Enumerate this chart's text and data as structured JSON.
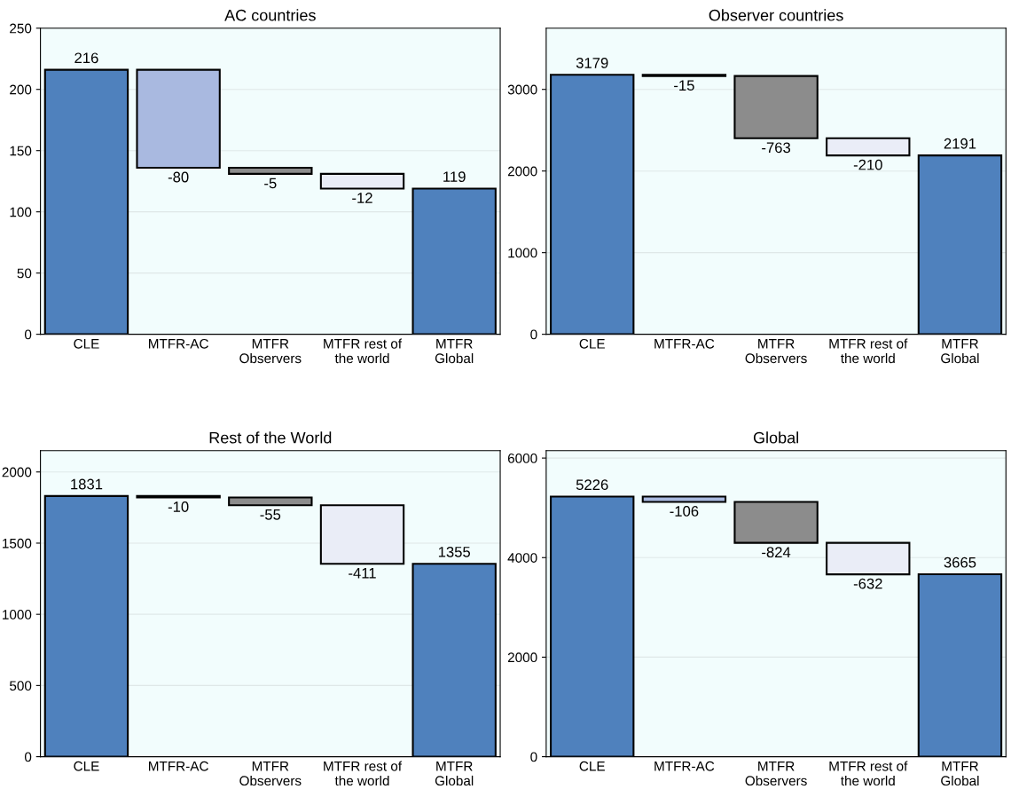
{
  "chart_data": [
    {
      "type": "bar",
      "title": "AC countries",
      "categories": [
        "CLE",
        "MTFR-AC",
        "MTFR\nObservers",
        "MTFR rest of\nthe world",
        "MTFR\nGlobal"
      ],
      "values": [
        216,
        -80,
        -5,
        -12,
        119
      ],
      "base": [
        0,
        216,
        136,
        131,
        0
      ],
      "colors": [
        "#4f81bd",
        "#a9b9e0",
        "#8c8c8c",
        "#eaedf7",
        "#4f81bd"
      ],
      "ylim": [
        0,
        250
      ],
      "yticks": [
        0,
        50,
        100,
        150,
        200,
        250
      ],
      "grid": "y",
      "data_labels": true
    },
    {
      "type": "bar",
      "title": "Observer countries",
      "categories": [
        "CLE",
        "MTFR-AC",
        "MTFR\nObservers",
        "MTFR rest of\nthe world",
        "MTFR\nGlobal"
      ],
      "values": [
        3179,
        -15,
        -763,
        -210,
        2191
      ],
      "base": [
        0,
        3179,
        3164,
        2401,
        0
      ],
      "colors": [
        "#4f81bd",
        "#a9b9e0",
        "#8c8c8c",
        "#eaedf7",
        "#4f81bd"
      ],
      "ylim": [
        0,
        3750
      ],
      "yticks": [
        0,
        1000,
        2000,
        3000
      ],
      "grid": "y",
      "data_labels": true
    },
    {
      "type": "bar",
      "title": "Rest of the World",
      "categories": [
        "CLE",
        "MTFR-AC",
        "MTFR\nObservers",
        "MTFR rest of\nthe world",
        "MTFR\nGlobal"
      ],
      "values": [
        1831,
        -10,
        -55,
        -411,
        1355
      ],
      "base": [
        0,
        1831,
        1821,
        1766,
        0
      ],
      "colors": [
        "#4f81bd",
        "#a9b9e0",
        "#8c8c8c",
        "#eaedf7",
        "#4f81bd"
      ],
      "ylim": [
        0,
        2150
      ],
      "yticks": [
        0,
        500,
        1000,
        1500,
        2000
      ],
      "grid": "y",
      "data_labels": true
    },
    {
      "type": "bar",
      "title": "Global",
      "categories": [
        "CLE",
        "MTFR-AC",
        "MTFR\nObservers",
        "MTFR rest of\nthe world",
        "MTFR\nGlobal"
      ],
      "values": [
        5226,
        -106,
        -824,
        -632,
        3665
      ],
      "base": [
        0,
        5226,
        5120,
        4296,
        0
      ],
      "colors": [
        "#4f81bd",
        "#a9b9e0",
        "#8c8c8c",
        "#eaedf7",
        "#4f81bd"
      ],
      "ylim": [
        0,
        6150
      ],
      "yticks": [
        0,
        2000,
        4000,
        6000
      ],
      "grid": "y",
      "data_labels": true
    }
  ]
}
